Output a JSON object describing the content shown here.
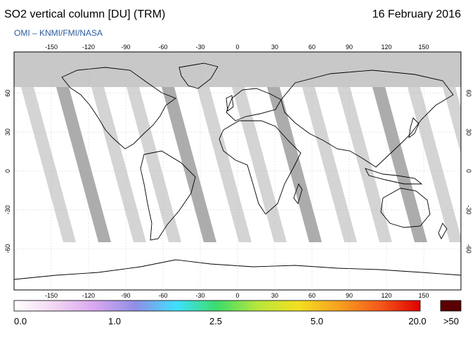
{
  "header": {
    "title": "SO2 vertical column [DU] (TRM)",
    "date": "16 February 2016",
    "credit": "OMI  –  KNMI/FMI/NASA"
  },
  "map": {
    "lon_ticks": [
      "-150",
      "-120",
      "-90",
      "-60",
      "-30",
      "0",
      "30",
      "60",
      "90",
      "120",
      "150"
    ],
    "lat_ticks": [
      "60",
      "30",
      "0",
      "-30",
      "-60"
    ],
    "ocean_color": "#ffffff",
    "land_outline_color": "#000000",
    "missing_data_color": "#c8c8c8",
    "orbit_gap_colors": [
      "#d2d2d2",
      "#a8a8a8"
    ]
  },
  "colorbar": {
    "labels": [
      "0.0",
      "1.0",
      "2.5",
      "5.0",
      "20.0"
    ],
    "overflow_label": ">50",
    "overflow_color": "#5a0000",
    "gradient_colors": [
      "#ffffff",
      "#f2d6f2",
      "#d9a6f0",
      "#8f8fe6",
      "#3fe0ff",
      "#3ddc6a",
      "#b8e63c",
      "#f2e020",
      "#f7a020",
      "#f45a1a",
      "#e00000"
    ]
  }
}
